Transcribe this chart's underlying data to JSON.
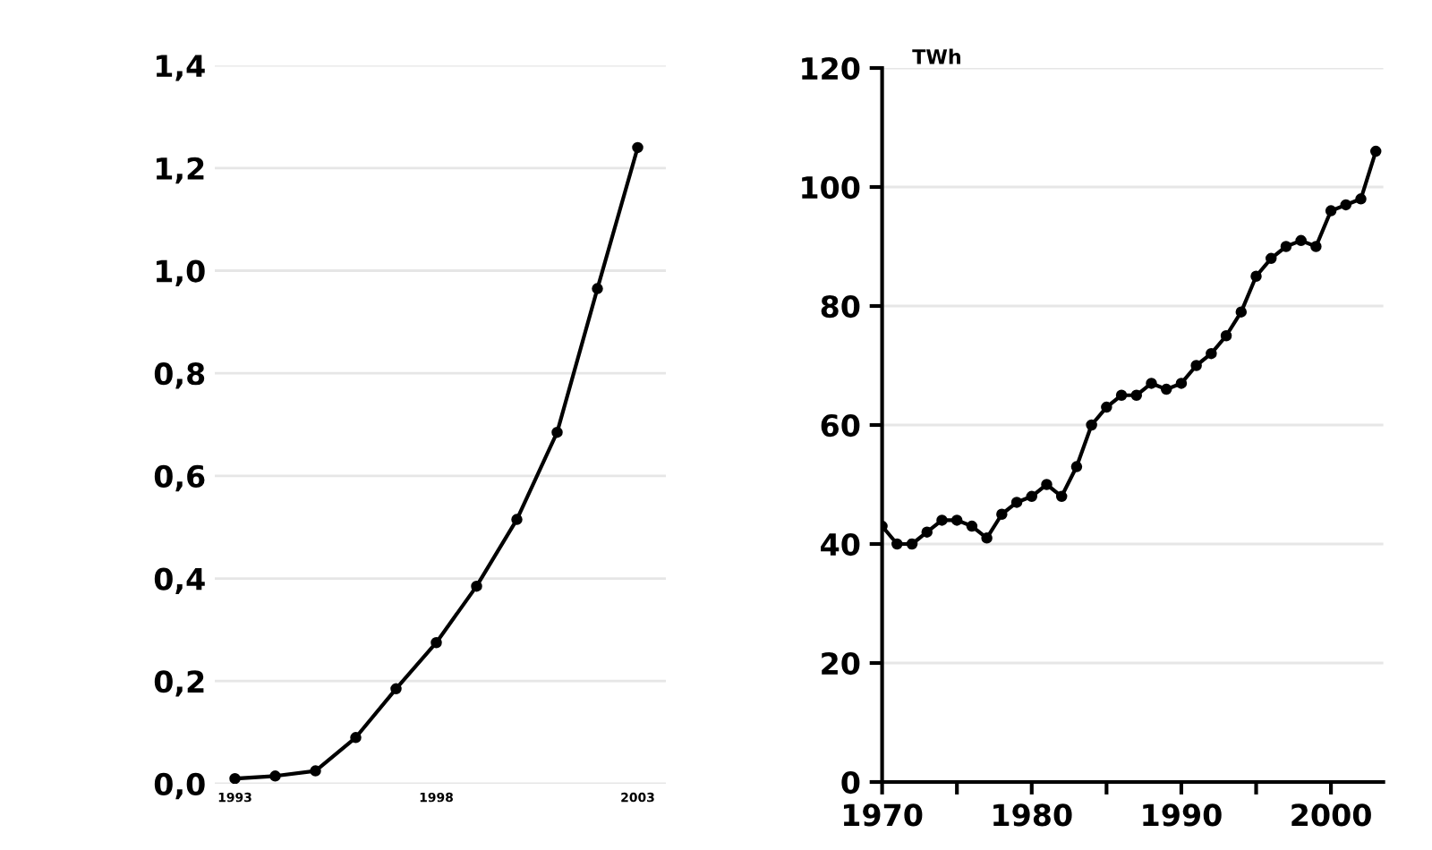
{
  "chart_data": [
    {
      "type": "line",
      "x": [
        1993,
        1994,
        1995,
        1996,
        1997,
        1998,
        1999,
        2000,
        2001,
        2002,
        2003
      ],
      "series": [
        {
          "color": "#000000",
          "values": [
            0.01,
            0.015,
            0.025,
            0.09,
            0.185,
            0.275,
            0.385,
            0.515,
            0.685,
            0.965,
            1.24
          ]
        }
      ],
      "xlim": [
        1992.5,
        2003.7
      ],
      "xticks": [
        1993,
        1998,
        2003
      ],
      "ylim": [
        0,
        1.4
      ],
      "yticks": [
        {
          "value": 0,
          "label": "0,0"
        },
        {
          "value": 0.2,
          "label": "0,2"
        },
        {
          "value": 0.4,
          "label": "0,4"
        },
        {
          "value": 0.6,
          "label": "0,6"
        },
        {
          "value": 0.8,
          "label": "0,8"
        },
        {
          "value": 1.0,
          "label": "1,0"
        },
        {
          "value": 1.2,
          "label": "1,2"
        },
        {
          "value": 1.4,
          "label": "1,4"
        }
      ],
      "grid": "y",
      "marker": "circle",
      "line_style": "solid",
      "legend": false
    },
    {
      "type": "line",
      "x": [
        1970,
        1971,
        1972,
        1973,
        1974,
        1975,
        1976,
        1977,
        1978,
        1979,
        1980,
        1981,
        1982,
        1983,
        1984,
        1985,
        1986,
        1987,
        1988,
        1989,
        1990,
        1991,
        1992,
        1993,
        1994,
        1995,
        1996,
        1997,
        1998,
        1999,
        2000,
        2001,
        2002,
        2003
      ],
      "series": [
        {
          "color": "#000000",
          "values": [
            43,
            40,
            40,
            42,
            44,
            44,
            43,
            41,
            45,
            47,
            48,
            50,
            48,
            53,
            60,
            63,
            65,
            65,
            67,
            66,
            67,
            70,
            72,
            75,
            79,
            85,
            88,
            90,
            91,
            90,
            96,
            97,
            98,
            106
          ]
        }
      ],
      "xlim": [
        1970,
        2003.5
      ],
      "xticks": [
        1970,
        {
          "value": 1975,
          "label": null
        },
        1980,
        {
          "value": 1985,
          "label": null
        },
        1990,
        {
          "value": 1995,
          "label": null
        },
        2000
      ],
      "ylim": [
        0,
        120
      ],
      "yticks": [
        0,
        20,
        40,
        60,
        80,
        100,
        120
      ],
      "annotations": [
        "TWh"
      ],
      "grid": "y",
      "marker": "circle",
      "line_style": "solid",
      "legend": false
    }
  ]
}
